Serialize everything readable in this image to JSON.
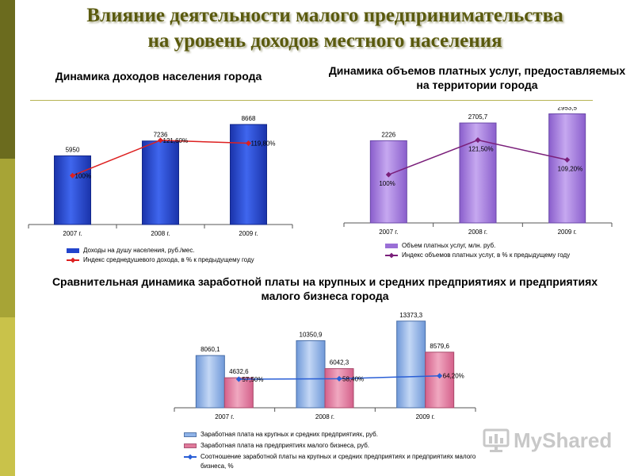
{
  "title_line1": "Влияние деятельности малого предпринимательства",
  "title_line2": "на уровень доходов местного населения",
  "logo_text": "MyShared",
  "colors": {
    "blue": "#2244cc",
    "red": "#dd2020",
    "purple": "#9a6fd6",
    "purple_line": "#7a1f7a",
    "lightblue": "#8fb3e8",
    "pink": "#e07a9a",
    "line_blue": "#2a5fd6"
  },
  "chart_data": [
    {
      "type": "bar",
      "title": "Динамика доходов населения города",
      "categories": [
        "2007 г.",
        "2008 г.",
        "2009 г."
      ],
      "series": [
        {
          "name": "Доходы на душу населения, руб./мес.",
          "kind": "bar",
          "values": [
            5950,
            7236,
            8668
          ],
          "labels": [
            "5950",
            "7236",
            "8668"
          ]
        },
        {
          "name": "Индекс среднедушевого дохода, в % к предыдущему году",
          "kind": "line",
          "values": [
            100,
            121.6,
            119.8
          ],
          "labels": [
            "100%",
            "121,60%",
            "119,80%"
          ]
        }
      ]
    },
    {
      "type": "bar",
      "title": "Динамика объемов платных услуг, предоставляемых на территории города",
      "categories": [
        "2007 г.",
        "2008 г.",
        "2009 г."
      ],
      "series": [
        {
          "name": "Объем платных услуг, млн. руб.",
          "kind": "bar",
          "values": [
            2226,
            2705.7,
            2953.5
          ],
          "labels": [
            "2226",
            "2705,7",
            "2953,5"
          ]
        },
        {
          "name": "Индекс объемов платных услуг, в % к предыдущему году",
          "kind": "line",
          "values": [
            100,
            121.5,
            109.2
          ],
          "labels": [
            "100%",
            "121,50%",
            "109,20%"
          ]
        }
      ]
    },
    {
      "type": "bar",
      "title": "Сравнительная динамика заработной платы на крупных и средних предприятиях и предприятиях малого бизнеса города",
      "categories": [
        "2007 г.",
        "2008 г.",
        "2009 г."
      ],
      "series": [
        {
          "name": "Заработная плата на крупных и средних предприятиях, руб.",
          "kind": "bar",
          "values": [
            8060.1,
            10350.9,
            13373.3
          ],
          "labels": [
            "8060,1",
            "10350,9",
            "13373,3"
          ]
        },
        {
          "name": "Заработная плата на предприятиях малого бизнеса, руб.",
          "kind": "bar",
          "values": [
            4632.6,
            6042.3,
            8579.6
          ],
          "labels": [
            "4632,6",
            "6042,3",
            "8579,6"
          ]
        },
        {
          "name": "Соотношение заработной платы на крупных и средних предприятиях и предприятиях малого бизнеса, %",
          "kind": "line",
          "values": [
            57.5,
            58.4,
            64.2
          ],
          "labels": [
            "57,50%",
            "58,40%",
            "64,20%"
          ]
        }
      ]
    }
  ]
}
